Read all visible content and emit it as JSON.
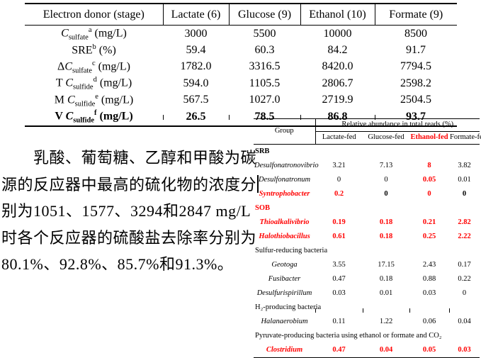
{
  "accent_red": "#ff0000",
  "table1": {
    "header": [
      "Electron donor (stage)",
      "Lactate (6)",
      "Glucose (9)",
      "Ethanol (10)",
      "Formate (9)"
    ],
    "rows": [
      {
        "pre": "",
        "sym": "C",
        "sub": "sulfate",
        "sup": "a",
        "post": " (mg/L)",
        "bold": false,
        "values": [
          "3000",
          "5500",
          "10000",
          "8500"
        ]
      },
      {
        "pre": "SRE",
        "sym": "",
        "sub": "",
        "sup": "b",
        "post": " (%)",
        "bold": false,
        "values": [
          "59.4",
          "60.3",
          "84.2",
          "91.7"
        ]
      },
      {
        "pre": "Δ",
        "sym": "C",
        "sub": "sulfate",
        "sup": "c",
        "post": " (mg/L)",
        "bold": false,
        "values": [
          "1782.0",
          "3316.5",
          "8420.0",
          "7794.5"
        ]
      },
      {
        "pre": "T ",
        "sym": "C",
        "sub": "sulfide",
        "sup": "d",
        "post": " (mg/L)",
        "bold": false,
        "values": [
          "594.0",
          "1105.5",
          "2806.7",
          "2598.2"
        ]
      },
      {
        "pre": "M ",
        "sym": "C",
        "sub": "sulfide",
        "sup": "e",
        "post": " (mg/L)",
        "bold": false,
        "values": [
          "567.5",
          "1027.0",
          "2719.9",
          "2504.5"
        ]
      },
      {
        "pre": "V ",
        "sym": "C",
        "sub": "sulfide",
        "sup": "f",
        "post": " (mg/L)",
        "bold": true,
        "values": [
          "26.5",
          "78.5",
          "86.8",
          "93.7"
        ]
      }
    ]
  },
  "table2": {
    "group_header": "Group",
    "span_header": "Relative abundance in total reads (%)",
    "col_headers": [
      {
        "label": "Lactate-fed",
        "red": false
      },
      {
        "label": "Glucose-fed",
        "red": false
      },
      {
        "label": "Ethanol-fed",
        "red": true
      },
      {
        "label": "Formate-fed",
        "red": false
      }
    ],
    "rows": [
      {
        "type": "section",
        "label": "SRB",
        "bold": true,
        "red": false
      },
      {
        "type": "data",
        "label": "Desulfonatronovibrio",
        "red_label": false,
        "values": [
          "3.21",
          "7.13",
          "8",
          "3.82"
        ],
        "red": [
          false,
          false,
          true,
          false
        ]
      },
      {
        "type": "data",
        "label": "Desulfonatronum",
        "red_label": false,
        "values": [
          "0",
          "0",
          "0.05",
          "0.01"
        ],
        "red": [
          false,
          false,
          true,
          false
        ]
      },
      {
        "type": "data",
        "label": "Syntrophobacter",
        "red_label": true,
        "boldAll": true,
        "values": [
          "0.2",
          "0",
          "0",
          "0"
        ],
        "red": [
          true,
          false,
          true,
          false
        ]
      },
      {
        "type": "section",
        "label": "SOB",
        "bold": true,
        "red": true
      },
      {
        "type": "data",
        "label": "Thioalkalivibrio",
        "red_label": true,
        "values": [
          "0.19",
          "0.18",
          "0.21",
          "2.82"
        ],
        "red": [
          true,
          true,
          true,
          true
        ]
      },
      {
        "type": "data",
        "label": "Halothiobacillus",
        "red_label": true,
        "values": [
          "0.61",
          "0.18",
          "0.25",
          "2.22"
        ],
        "red": [
          true,
          true,
          true,
          true
        ]
      },
      {
        "type": "section",
        "label": "Sulfur-reducing bacteria",
        "bold": false,
        "red": false
      },
      {
        "type": "data",
        "label": "Geotoga",
        "red_label": false,
        "values": [
          "3.55",
          "17.15",
          "2.43",
          "0.17"
        ],
        "red": [
          false,
          false,
          false,
          false
        ]
      },
      {
        "type": "data",
        "label": "Fusibacter",
        "red_label": false,
        "values": [
          "0.47",
          "0.18",
          "0.88",
          "0.22"
        ],
        "red": [
          false,
          false,
          false,
          false
        ]
      },
      {
        "type": "data",
        "label": "Desulfurispirillum",
        "red_label": false,
        "values": [
          "0.03",
          "0.01",
          "0.03",
          "0"
        ],
        "red": [
          false,
          false,
          false,
          false
        ]
      },
      {
        "type": "section",
        "label": "H₂-producing bacteria",
        "bold": false,
        "red": false
      },
      {
        "type": "data",
        "label": "Halanaerobium",
        "red_label": false,
        "values": [
          "0.11",
          "1.22",
          "0.06",
          "0.04"
        ],
        "red": [
          false,
          false,
          false,
          false
        ]
      },
      {
        "type": "section",
        "label": "Pyruvate-producing bacteria using ethanol or formate and CO₂",
        "bold": false,
        "red": false
      },
      {
        "type": "data",
        "label": "Clostridium",
        "red_label": true,
        "values": [
          "0.47",
          "0.04",
          "0.05",
          "0.03"
        ],
        "red": [
          true,
          true,
          true,
          true
        ]
      }
    ]
  },
  "paragraph": {
    "lines": [
      "乳酸、葡萄糖、乙醇和甲酸为碳",
      "源的反应器中最高的硫化物的浓度分",
      "别为1051、1577、3294和2847 mg/L",
      "时各个反应器的硫酸盐去除率分别为",
      "80.1%、92.8%、85.7%和91.3%。"
    ]
  }
}
